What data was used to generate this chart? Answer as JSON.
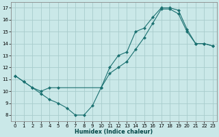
{
  "xlabel": "Humidex (Indice chaleur)",
  "bg_color": "#cae8e8",
  "grid_color": "#a8cccc",
  "line_color": "#1a7070",
  "xlim": [
    -0.5,
    23.5
  ],
  "ylim": [
    7.5,
    17.5
  ],
  "xticks": [
    0,
    1,
    2,
    3,
    4,
    5,
    6,
    7,
    8,
    9,
    10,
    11,
    12,
    13,
    14,
    15,
    16,
    17,
    18,
    19,
    20,
    21,
    22,
    23
  ],
  "yticks": [
    8,
    9,
    10,
    11,
    12,
    13,
    14,
    15,
    16,
    17
  ],
  "line1_x": [
    0,
    1,
    2,
    3,
    4,
    5,
    6,
    7,
    8,
    9,
    10,
    11,
    12,
    13,
    14,
    15,
    16,
    17,
    18,
    19,
    20,
    21,
    22,
    23
  ],
  "line1_y": [
    11.3,
    10.8,
    10.3,
    9.8,
    9.3,
    9.0,
    8.6,
    8.0,
    8.0,
    8.8,
    10.3,
    12.0,
    13.0,
    13.3,
    15.0,
    15.3,
    16.2,
    17.0,
    17.0,
    16.8,
    15.2,
    14.0,
    14.0,
    13.8
  ],
  "line2_x": [
    0,
    1,
    2,
    3,
    4,
    5,
    10,
    11,
    12,
    13,
    14,
    15,
    16,
    17,
    18,
    19,
    20,
    21,
    22,
    23
  ],
  "line2_y": [
    11.3,
    10.8,
    10.3,
    10.0,
    10.3,
    10.3,
    10.3,
    11.5,
    12.0,
    12.5,
    13.5,
    14.5,
    15.7,
    16.9,
    16.9,
    16.5,
    15.0,
    14.0,
    14.0,
    13.8
  ]
}
